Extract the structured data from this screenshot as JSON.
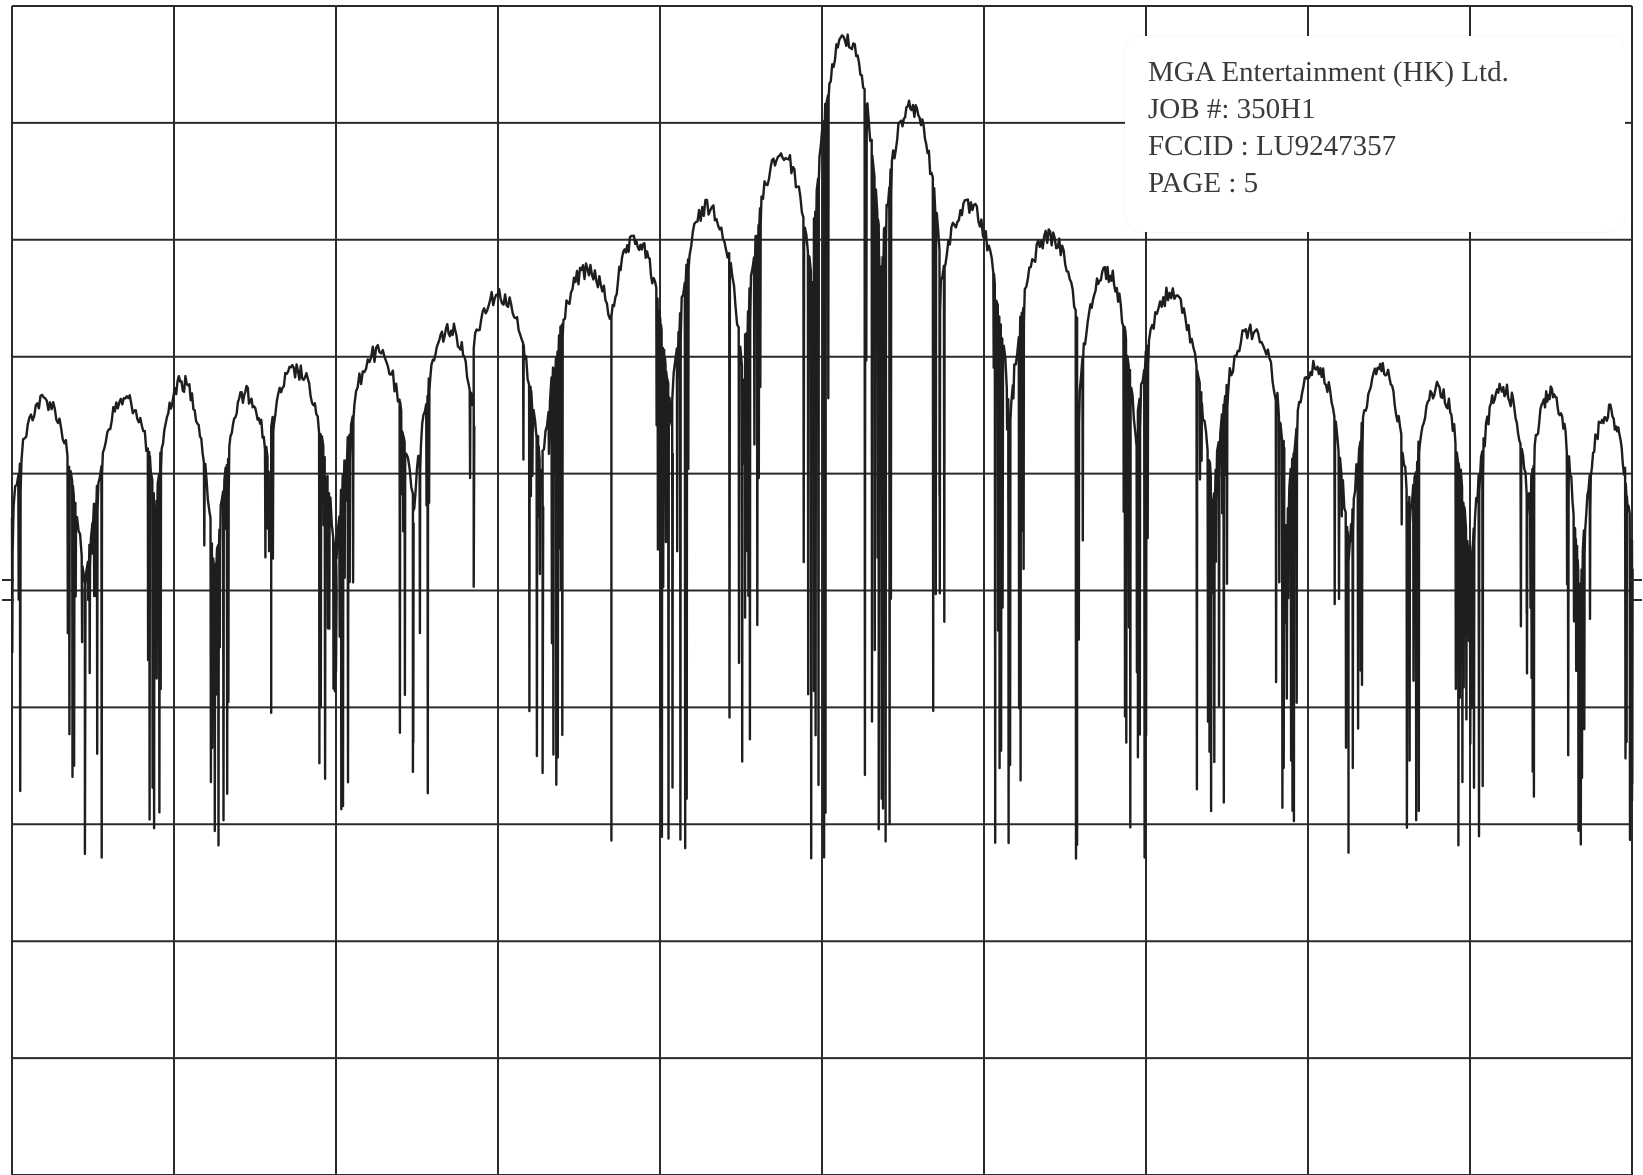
{
  "label": {
    "company": "MGA Entertainment (HK) Ltd.",
    "job": "JOB #: 350H1",
    "fccid": "FCCID : LU9247357",
    "page": "PAGE : 5"
  },
  "colors": {
    "trace": "#1e1e1e",
    "grid": "#2b2b2b",
    "label_text": "#3a3a3a",
    "background": "#ffffff"
  },
  "chart_data": {
    "type": "line",
    "title": "",
    "xlabel": "",
    "ylabel": "",
    "grid": true,
    "x_divisions": 10,
    "y_divisions": 10,
    "xlim": [
      0,
      10
    ],
    "ylim": [
      0,
      10
    ],
    "series": [
      {
        "description": "spectrum envelope: lobe peak levels (in grid divisions, 0 = bottom, 10 = top) from left to right, main lobe at center",
        "lobe_centers": [
          0.2,
          0.7,
          1.05,
          1.45,
          1.75,
          2.25,
          2.7,
          3.0,
          3.55,
          3.85,
          4.3,
          4.75,
          5.15,
          5.55,
          5.9,
          6.4,
          6.75,
          7.15,
          7.65,
          8.05,
          8.45,
          8.8,
          9.2,
          9.5,
          9.85
        ],
        "lobe_peaks": [
          6.7,
          6.7,
          6.85,
          6.75,
          6.95,
          7.1,
          7.3,
          7.6,
          7.8,
          8.05,
          8.35,
          8.8,
          9.8,
          9.2,
          8.35,
          8.1,
          7.8,
          7.6,
          7.3,
          7.0,
          6.95,
          6.8,
          6.8,
          6.75,
          6.6
        ],
        "null_depth_min": 2.7,
        "null_depth_max": 6.0
      }
    ]
  }
}
